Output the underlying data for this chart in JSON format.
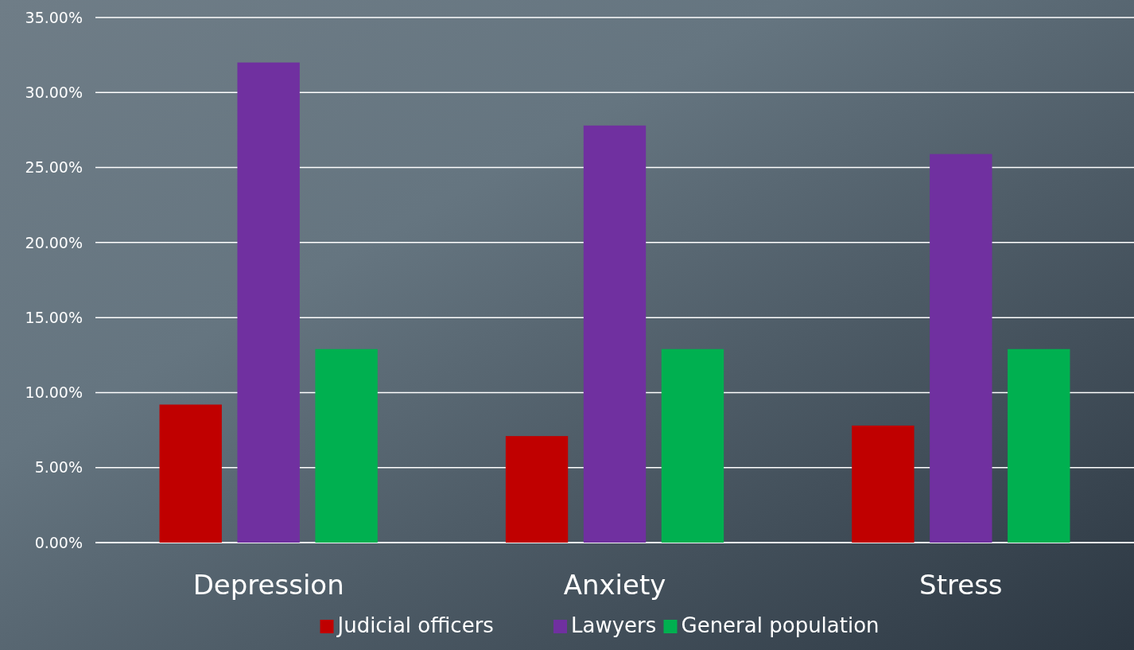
{
  "chart_data": {
    "type": "bar",
    "categories": [
      "Depression",
      "Anxiety",
      "Stress"
    ],
    "series": [
      {
        "name": "Judicial officers",
        "color": "#c00000",
        "values": [
          9.2,
          7.1,
          7.8
        ]
      },
      {
        "name": "Lawyers",
        "color": "#7030a0",
        "values": [
          32,
          27.8,
          25.9
        ]
      },
      {
        "name": "General population",
        "color": "#00b050",
        "values": [
          12.9,
          12.9,
          12.9
        ]
      }
    ],
    "ylim": [
      0,
      35
    ],
    "yticks": [
      {
        "value": 0,
        "label": "0.00%"
      },
      {
        "value": 5,
        "label": "5.00%"
      },
      {
        "value": 10,
        "label": "10.00%"
      },
      {
        "value": 15,
        "label": "15.00%"
      },
      {
        "value": 20,
        "label": "20.00%"
      },
      {
        "value": 25,
        "label": "25.00%"
      },
      {
        "value": 30,
        "label": "30.00%"
      },
      {
        "value": 35,
        "label": "35.00%"
      }
    ],
    "grid": "y",
    "legend": "bottom"
  }
}
